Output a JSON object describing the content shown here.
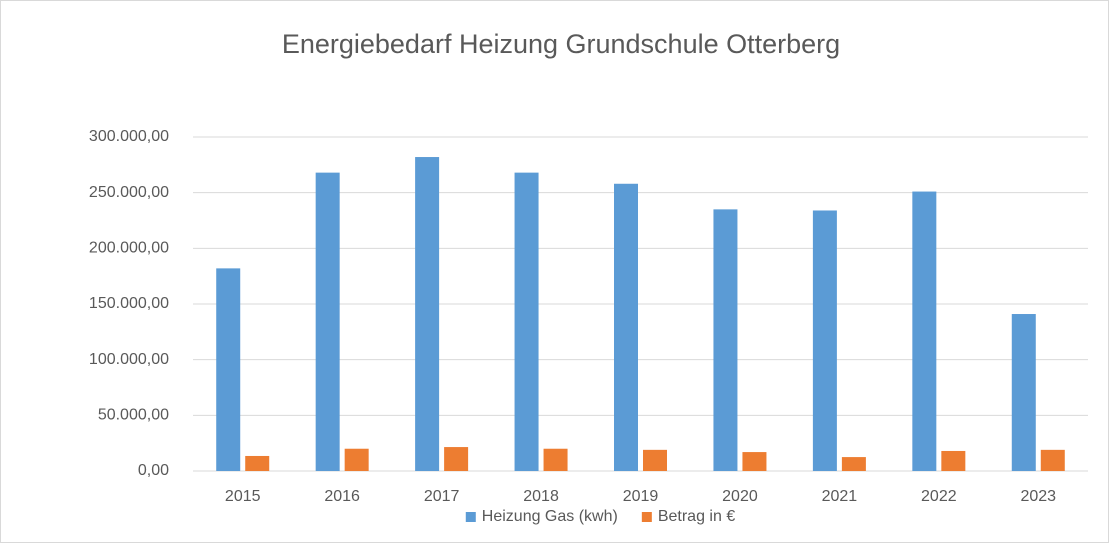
{
  "chart_data": {
    "type": "bar",
    "title": "Energiebedarf Heizung Grundschule Otterberg",
    "categories": [
      "2015",
      "2016",
      "2017",
      "2018",
      "2019",
      "2020",
      "2021",
      "2022",
      "2023"
    ],
    "series": [
      {
        "name": "Heizung Gas (kwh)",
        "color": "#5b9bd5",
        "values": [
          182000,
          268000,
          282000,
          268000,
          258000,
          235000,
          234000,
          251000,
          141000
        ]
      },
      {
        "name": "Betrag in €",
        "color": "#ed7d31",
        "values": [
          13500,
          20000,
          21500,
          20000,
          19000,
          17000,
          12500,
          18000,
          19000
        ]
      }
    ],
    "ylim": [
      0,
      300000
    ],
    "yticks": [
      {
        "value": 0,
        "label": "0,00"
      },
      {
        "value": 50000,
        "label": "50.000,00"
      },
      {
        "value": 100000,
        "label": "100.000,00"
      },
      {
        "value": 150000,
        "label": "150.000,00"
      },
      {
        "value": 200000,
        "label": "200.000,00"
      },
      {
        "value": 250000,
        "label": "250.000,00"
      },
      {
        "value": 300000,
        "label": "300.000,00"
      }
    ],
    "grid": true,
    "legend": "bottom"
  }
}
